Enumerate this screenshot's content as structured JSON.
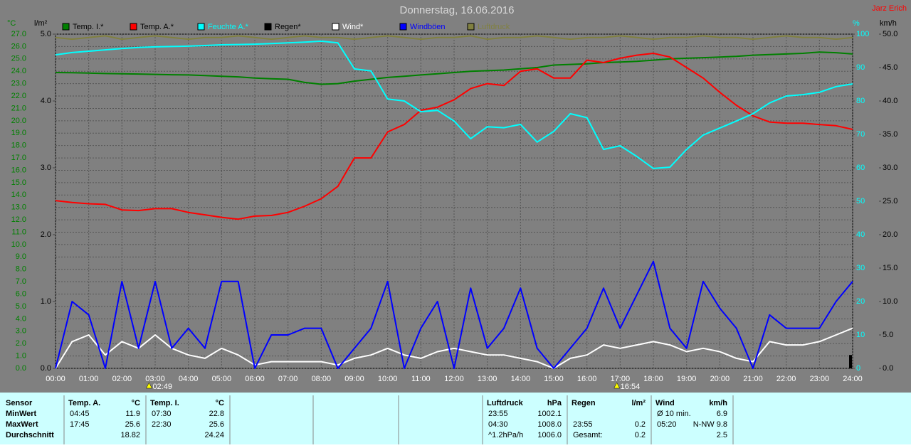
{
  "chart_data": {
    "type": "line",
    "title": "Donnerstag, 16.06.2016",
    "author": "Jarz Erich",
    "ylabel": "°C",
    "y2label": "l/m²",
    "y3label": "%",
    "y4label": "km/h",
    "ytick_color": "#008000",
    "y2tick_color": "#000000",
    "y3tick_color": "#00ffff",
    "y4tick_color": "#000000",
    "background": "#808080",
    "grid": true,
    "legend": "top",
    "x": [
      0,
      0.5,
      1,
      1.5,
      2,
      2.5,
      3,
      3.5,
      4,
      4.5,
      5,
      5.5,
      6,
      6.5,
      7,
      7.5,
      8,
      8.5,
      9,
      9.5,
      10,
      10.5,
      11,
      11.5,
      12,
      12.5,
      13,
      13.5,
      14,
      14.5,
      15,
      15.5,
      16,
      16.5,
      17,
      17.5,
      18,
      18.5,
      19,
      19.5,
      20,
      20.5,
      21,
      21.5,
      22,
      22.5,
      23,
      23.5,
      24
    ],
    "xlim": [
      0,
      24
    ],
    "xticks": [
      {
        "value": 0,
        "label": "00:00"
      },
      {
        "value": 1,
        "label": "01:00"
      },
      {
        "value": 2,
        "label": "02:00"
      },
      {
        "value": 3,
        "label": "03:00"
      },
      {
        "value": 4,
        "label": "04:00"
      },
      {
        "value": 5,
        "label": "05:00"
      },
      {
        "value": 6,
        "label": "06:00"
      },
      {
        "value": 7,
        "label": "07:00"
      },
      {
        "value": 8,
        "label": "08:00"
      },
      {
        "value": 9,
        "label": "09:00"
      },
      {
        "value": 10,
        "label": "10:00"
      },
      {
        "value": 11,
        "label": "11:00"
      },
      {
        "value": 12,
        "label": "12:00"
      },
      {
        "value": 13,
        "label": "13:00"
      },
      {
        "value": 14,
        "label": "14:00"
      },
      {
        "value": 15,
        "label": "15:00"
      },
      {
        "value": 16,
        "label": "16:00"
      },
      {
        "value": 17,
        "label": "17:00"
      },
      {
        "value": 18,
        "label": "18:00"
      },
      {
        "value": 19,
        "label": "19:00"
      },
      {
        "value": 20,
        "label": "20:00"
      },
      {
        "value": 21,
        "label": "21:00"
      },
      {
        "value": 22,
        "label": "22:00"
      },
      {
        "value": 23,
        "label": "23:00"
      },
      {
        "value": 24,
        "label": "24:00"
      }
    ],
    "ylim": [
      0,
      27
    ],
    "yticks": [
      {
        "value": 0,
        "label": "0.0"
      },
      {
        "value": 1,
        "label": "1.0"
      },
      {
        "value": 2,
        "label": "2.0"
      },
      {
        "value": 3,
        "label": "3.0"
      },
      {
        "value": 4,
        "label": "4.0"
      },
      {
        "value": 5,
        "label": "5.0"
      },
      {
        "value": 6,
        "label": "6.0"
      },
      {
        "value": 7,
        "label": "7.0"
      },
      {
        "value": 8,
        "label": "8.0"
      },
      {
        "value": 9,
        "label": "9.0"
      },
      {
        "value": 10,
        "label": "10.0"
      },
      {
        "value": 11,
        "label": "11.0"
      },
      {
        "value": 12,
        "label": "12.0"
      },
      {
        "value": 13,
        "label": "13.0"
      },
      {
        "value": 14,
        "label": "14.0"
      },
      {
        "value": 15,
        "label": "15.0"
      },
      {
        "value": 16,
        "label": "16.0"
      },
      {
        "value": 17,
        "label": "17.0"
      },
      {
        "value": 18,
        "label": "18.0"
      },
      {
        "value": 19,
        "label": "19.0"
      },
      {
        "value": 20,
        "label": "20.0"
      },
      {
        "value": 21,
        "label": "21.0"
      },
      {
        "value": 22,
        "label": "22.0"
      },
      {
        "value": 23,
        "label": "23.0"
      },
      {
        "value": 24,
        "label": "24.0"
      },
      {
        "value": 25,
        "label": "25.0"
      },
      {
        "value": 26,
        "label": "26.0"
      },
      {
        "value": 27,
        "label": "27.0"
      }
    ],
    "y2lim": [
      0,
      5
    ],
    "y2ticks": [
      {
        "value": 0,
        "label": "0.0"
      },
      {
        "value": 1,
        "label": "1.0"
      },
      {
        "value": 2,
        "label": "2.0"
      },
      {
        "value": 3,
        "label": "3.0"
      },
      {
        "value": 4,
        "label": "4.0"
      },
      {
        "value": 5,
        "label": "5.0"
      }
    ],
    "y3lim": [
      0,
      100
    ],
    "y3ticks": [
      0,
      10,
      20,
      30,
      40,
      50,
      60,
      70,
      80,
      90,
      100
    ],
    "y4lim": [
      0,
      50
    ],
    "y4ticks": [
      {
        "value": 0,
        "label": "0.0"
      },
      {
        "value": 5,
        "label": "5.0"
      },
      {
        "value": 10,
        "label": "10.0"
      },
      {
        "value": 15,
        "label": "15.0"
      },
      {
        "value": 20,
        "label": "20.0"
      },
      {
        "value": 25,
        "label": "25.0"
      },
      {
        "value": 30,
        "label": "30.0"
      },
      {
        "value": 35,
        "label": "35.0"
      },
      {
        "value": 40,
        "label": "40.0"
      },
      {
        "value": 45,
        "label": "45.0"
      },
      {
        "value": 50,
        "label": "50.0"
      }
    ],
    "series": [
      {
        "name": "Temp. I.*",
        "color": "#008000",
        "axis": "y",
        "values": [
          23.9,
          23.88,
          23.85,
          23.82,
          23.8,
          23.78,
          23.75,
          23.72,
          23.7,
          23.65,
          23.6,
          23.55,
          23.45,
          23.4,
          23.35,
          23.1,
          22.95,
          23.0,
          23.2,
          23.35,
          23.5,
          23.6,
          23.7,
          23.8,
          23.9,
          24.0,
          24.05,
          24.1,
          24.2,
          24.3,
          24.5,
          24.55,
          24.6,
          24.7,
          24.75,
          24.8,
          24.9,
          25.0,
          25.05,
          25.1,
          25.15,
          25.2,
          25.3,
          25.35,
          25.4,
          25.45,
          25.55,
          25.5,
          25.4
        ]
      },
      {
        "name": "Temp. A.*",
        "color": "#ff0000",
        "axis": "y",
        "values": [
          13.55,
          13.4,
          13.3,
          13.25,
          12.8,
          12.75,
          12.9,
          12.9,
          12.6,
          12.4,
          12.2,
          12.05,
          12.3,
          12.35,
          12.6,
          13.1,
          13.7,
          14.7,
          17.0,
          17.0,
          19.1,
          19.7,
          20.85,
          21.1,
          21.7,
          22.6,
          23.0,
          22.85,
          24.0,
          24.2,
          23.45,
          23.45,
          24.9,
          24.7,
          25.05,
          25.3,
          25.45,
          25.15,
          24.3,
          23.45,
          22.3,
          21.25,
          20.4,
          19.9,
          19.8,
          19.8,
          19.7,
          19.6,
          19.3
        ]
      },
      {
        "name": "Feuchte A.*",
        "color": "#00ffff",
        "axis": "y3",
        "values": [
          93.8,
          94.5,
          94.9,
          95.3,
          95.7,
          96,
          96.2,
          96.3,
          96.4,
          96.6,
          96.8,
          96.9,
          97.0,
          97.2,
          97.4,
          97.6,
          97.9,
          97.4,
          89.6,
          89,
          80.6,
          80,
          76.8,
          77.2,
          74,
          68.7,
          72.3,
          72,
          73,
          67.7,
          70.9,
          76.2,
          75,
          65.5,
          66.6,
          63.4,
          59.8,
          60.2,
          65.5,
          69.8,
          71.9,
          74,
          76.2,
          79.4,
          81.5,
          81.9,
          82.6,
          84.3,
          85.1
        ]
      },
      {
        "name": "Regen*",
        "color": "#000000",
        "axis": "y2",
        "type": "bar",
        "values": [
          0,
          0,
          0,
          0,
          0,
          0,
          0,
          0,
          0,
          0,
          0,
          0,
          0,
          0,
          0,
          0,
          0,
          0,
          0,
          0,
          0,
          0,
          0,
          0,
          0,
          0,
          0,
          0,
          0,
          0,
          0,
          0,
          0,
          0,
          0,
          0,
          0,
          0,
          0,
          0,
          0,
          0,
          0,
          0,
          0,
          0,
          0,
          0,
          0.2
        ]
      },
      {
        "name": "Wind*",
        "color": "#ffffff",
        "axis": "y4",
        "values": [
          0,
          4,
          5,
          2,
          4,
          3,
          5,
          3,
          2,
          1.5,
          3,
          2,
          0.5,
          1,
          1,
          1,
          1,
          0.5,
          1.5,
          2,
          3,
          2,
          1.5,
          2.5,
          3,
          2.5,
          2,
          2,
          1.5,
          1,
          0,
          1.5,
          2,
          3.5,
          3,
          3.5,
          4,
          3.5,
          2.5,
          3,
          2.5,
          1.5,
          1,
          4,
          3.5,
          3.5,
          4,
          5,
          6
        ]
      },
      {
        "name": "Windböen",
        "color": "#0000ff",
        "axis": "y4",
        "values": [
          0,
          10,
          8,
          0,
          13,
          3,
          13,
          3,
          6,
          3,
          13,
          13,
          0,
          5,
          5,
          6,
          6,
          0,
          3,
          6,
          13,
          0,
          6,
          10,
          0,
          12,
          3,
          6,
          12,
          3,
          0,
          3,
          6,
          12,
          6,
          11,
          16,
          6,
          3,
          13,
          9,
          6,
          0,
          8,
          6,
          6,
          6,
          10,
          13
        ]
      },
      {
        "name": "Luftdruck",
        "color": "#808040",
        "axis": "y3",
        "values": [
          99,
          98.5,
          99,
          99.5,
          98.5,
          99,
          99.5,
          99,
          98.5,
          99,
          99,
          99.5,
          99,
          98.5,
          99,
          99.5,
          99,
          99,
          98.5,
          99,
          99.5,
          99,
          98.5,
          99,
          99,
          99.5,
          98.5,
          99,
          99,
          99.5,
          99,
          98.5,
          99,
          99,
          99.5,
          99,
          98.5,
          99,
          99,
          99.5,
          99,
          99,
          98.5,
          99,
          99.5,
          99,
          99,
          98.5,
          99
        ]
      }
    ],
    "annotations": [
      {
        "x": 2.8167,
        "label": "02:49"
      },
      {
        "x": 16.9,
        "label": "16:54"
      }
    ]
  },
  "table": {
    "sensor": "Sensor",
    "row_labels": [
      "MinWert",
      "MaxWert",
      "Durchschnitt"
    ],
    "groups": [
      {
        "title": "Temp. A.",
        "unit": "°C",
        "rows": [
          [
            "04:45",
            "11.9"
          ],
          [
            "17:45",
            "25.6"
          ],
          [
            null,
            "18.82"
          ]
        ]
      },
      {
        "title": "Temp. I.",
        "unit": "°C",
        "rows": [
          [
            "07:30",
            "22.8"
          ],
          [
            "22:30",
            "25.6"
          ],
          [
            null,
            "24.24"
          ]
        ]
      },
      {
        "title": "Luftdruck",
        "unit": "hPa",
        "rows": [
          [
            "23:55",
            "1002.1"
          ],
          [
            "04:30",
            "1008.0"
          ],
          [
            "^1.2hPa/h",
            "1006.0"
          ]
        ]
      },
      {
        "title": "Regen",
        "unit": "l/m²",
        "rows": [
          null,
          [
            "23:55",
            "0.2"
          ],
          [
            "Gesamt:",
            "0.2"
          ]
        ]
      },
      {
        "title": "Wind",
        "unit": "km/h",
        "rows": [
          [
            "Ø 10 min.",
            "6.9"
          ],
          [
            "05:20",
            "N-NW 9.8"
          ],
          [
            null,
            "2.5"
          ]
        ]
      }
    ]
  }
}
